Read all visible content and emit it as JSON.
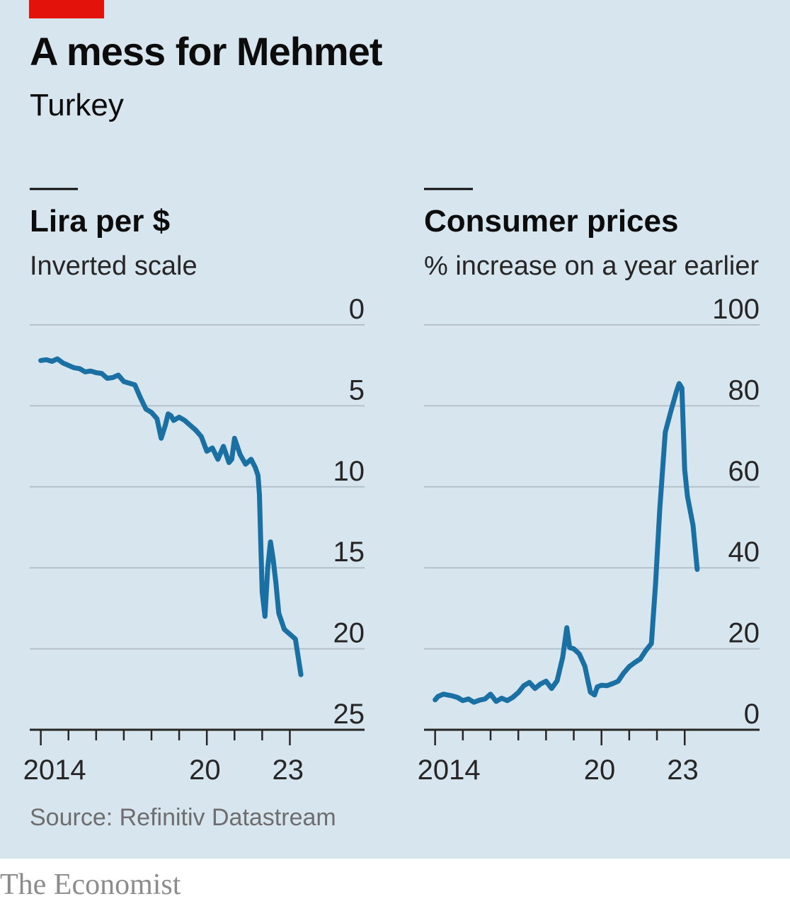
{
  "header": {
    "title": "A mess for Mehmet",
    "subtitle": "Turkey"
  },
  "source": "Source: Refinitiv Datastream",
  "brand": "The Economist",
  "colors": {
    "background": "#d7e5ef",
    "line": "#1a6fa3",
    "accent": "#e3120b",
    "grid": "#b4c1ca"
  },
  "chart_data": [
    {
      "type": "line",
      "title": "Lira per $",
      "subtitle": "Inverted scale",
      "y_inverted": true,
      "ylim": [
        0,
        25
      ],
      "yticks": [
        "0",
        "5",
        "10",
        "15",
        "20",
        "25"
      ],
      "xlim": [
        2013.6,
        2025.7
      ],
      "xtick_labels": [
        {
          "x": 2014,
          "label": "2014"
        },
        {
          "x": 2020,
          "label": "20"
        },
        {
          "x": 2023,
          "label": "23"
        }
      ],
      "grid": true,
      "series": [
        {
          "x": [
            2014.0,
            2014.2,
            2014.4,
            2014.6,
            2014.8,
            2015.0,
            2015.2,
            2015.4,
            2015.6,
            2015.8,
            2016.0,
            2016.2,
            2016.4,
            2016.6,
            2016.8,
            2017.0,
            2017.2,
            2017.4,
            2017.6,
            2017.8,
            2018.0,
            2018.2,
            2018.35,
            2018.5,
            2018.6,
            2018.7,
            2018.8,
            2019.0,
            2019.2,
            2019.4,
            2019.6,
            2019.8,
            2020.0,
            2020.2,
            2020.4,
            2020.6,
            2020.8,
            2020.9,
            2021.0,
            2021.2,
            2021.4,
            2021.6,
            2021.75,
            2021.85,
            2021.9,
            2021.95,
            2022.0,
            2022.1,
            2022.2,
            2022.3,
            2022.4,
            2022.5,
            2022.6,
            2022.8,
            2023.0,
            2023.2,
            2023.3,
            2023.4
          ],
          "y": [
            2.2,
            2.15,
            2.25,
            2.1,
            2.35,
            2.5,
            2.65,
            2.7,
            2.9,
            2.85,
            2.95,
            3.0,
            3.3,
            3.25,
            3.1,
            3.5,
            3.6,
            3.7,
            4.5,
            5.2,
            5.4,
            5.8,
            7.0,
            6.2,
            5.5,
            5.6,
            5.9,
            5.7,
            5.9,
            6.2,
            6.5,
            6.9,
            7.8,
            7.6,
            8.3,
            7.5,
            8.5,
            8.3,
            7.0,
            8.0,
            8.6,
            8.3,
            8.8,
            9.3,
            10.5,
            13.5,
            16.5,
            18.0,
            15.0,
            13.4,
            14.5,
            16.0,
            17.8,
            18.8,
            19.1,
            19.4,
            20.5,
            21.6
          ]
        }
      ]
    },
    {
      "type": "line",
      "title": "Consumer prices",
      "subtitle": "% increase on a year earlier",
      "ylim": [
        0,
        100
      ],
      "yticks": [
        "0",
        "20",
        "40",
        "60",
        "80",
        "100"
      ],
      "xlim": [
        2013.6,
        2025.7
      ],
      "xtick_labels": [
        {
          "x": 2014,
          "label": "2014"
        },
        {
          "x": 2020,
          "label": "20"
        },
        {
          "x": 2023,
          "label": "23"
        }
      ],
      "grid": true,
      "series": [
        {
          "x": [
            2014.0,
            2014.1,
            2014.3,
            2014.6,
            2014.8,
            2015.0,
            2015.2,
            2015.4,
            2015.6,
            2015.8,
            2016.0,
            2016.2,
            2016.4,
            2016.6,
            2016.8,
            2017.0,
            2017.2,
            2017.4,
            2017.6,
            2017.8,
            2018.0,
            2018.2,
            2018.4,
            2018.6,
            2018.75,
            2018.85,
            2019.0,
            2019.2,
            2019.4,
            2019.6,
            2019.75,
            2019.85,
            2020.0,
            2020.2,
            2020.4,
            2020.6,
            2020.8,
            2021.0,
            2021.2,
            2021.4,
            2021.6,
            2021.8,
            2021.95,
            2022.1,
            2022.3,
            2022.5,
            2022.7,
            2022.8,
            2022.9,
            2023.0,
            2023.1,
            2023.3,
            2023.45
          ],
          "y": [
            7.4,
            8.2,
            8.8,
            8.4,
            8.0,
            7.2,
            7.6,
            6.8,
            7.3,
            7.6,
            8.8,
            7.0,
            7.8,
            7.2,
            8.0,
            9.2,
            10.9,
            11.7,
            10.2,
            11.3,
            12.0,
            10.2,
            12.1,
            17.9,
            25.2,
            20.3,
            20.0,
            18.7,
            15.7,
            9.3,
            8.6,
            10.6,
            11.0,
            10.9,
            11.4,
            12.0,
            14.0,
            15.6,
            16.6,
            17.5,
            19.6,
            21.3,
            36.1,
            54.4,
            73.5,
            78.6,
            83.5,
            85.5,
            84.4,
            64.3,
            57.7,
            50.5,
            39.6
          ]
        }
      ]
    }
  ]
}
